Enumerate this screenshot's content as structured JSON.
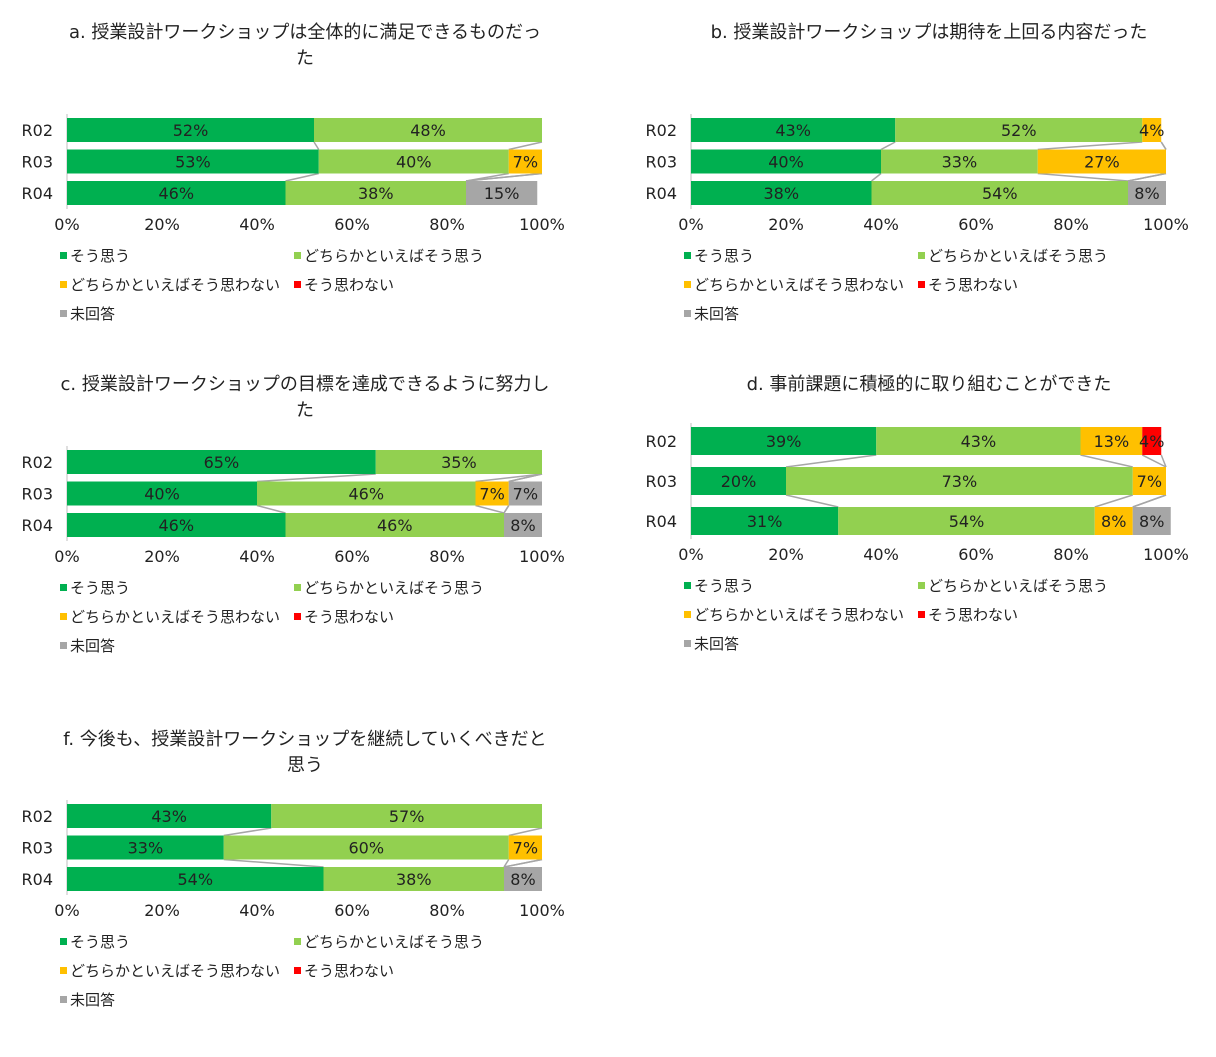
{
  "legend_labels": [
    "そう思う",
    "どちらかといえばそう思う",
    "どちらかといえばそう思わない",
    "そう思わない",
    "未回答"
  ],
  "colors": [
    "#00b050",
    "#92d050",
    "#ffc000",
    "#ff0000",
    "#a6a6a6"
  ],
  "chart_data": [
    {
      "type": "bar",
      "stacked": "percent",
      "title": "a.  授業設計ワークショップは全体的に満足できるものだった",
      "categories": [
        "R02",
        "R03",
        "R04"
      ],
      "xlim": [
        0,
        100
      ],
      "x_ticks": [
        "0%",
        "20%",
        "40%",
        "60%",
        "80%",
        "100%"
      ],
      "series": [
        {
          "name": "そう思う",
          "values": [
            52,
            53,
            46
          ]
        },
        {
          "name": "どちらかといえばそう思う",
          "values": [
            48,
            40,
            38
          ]
        },
        {
          "name": "どちらかといえばそう思わない",
          "values": [
            0,
            7,
            0
          ]
        },
        {
          "name": "そう思わない",
          "values": [
            0,
            0,
            0
          ]
        },
        {
          "name": "未回答",
          "values": [
            0,
            0,
            15
          ]
        }
      ]
    },
    {
      "type": "bar",
      "stacked": "percent",
      "title": "b.  授業設計ワークショップは期待を上回る内容だった",
      "categories": [
        "R02",
        "R03",
        "R04"
      ],
      "xlim": [
        0,
        100
      ],
      "x_ticks": [
        "0%",
        "20%",
        "40%",
        "60%",
        "80%",
        "100%"
      ],
      "series": [
        {
          "name": "そう思う",
          "values": [
            43,
            40,
            38
          ]
        },
        {
          "name": "どちらかといえばそう思う",
          "values": [
            52,
            33,
            54
          ]
        },
        {
          "name": "どちらかといえばそう思わない",
          "values": [
            4,
            27,
            0
          ]
        },
        {
          "name": "そう思わない",
          "values": [
            0,
            0,
            0
          ]
        },
        {
          "name": "未回答",
          "values": [
            0,
            0,
            8
          ]
        }
      ]
    },
    {
      "type": "bar",
      "stacked": "percent",
      "title": "c.  授業設計ワークショップの目標を達成できるように努力した",
      "categories": [
        "R02",
        "R03",
        "R04"
      ],
      "xlim": [
        0,
        100
      ],
      "x_ticks": [
        "0%",
        "20%",
        "40%",
        "60%",
        "80%",
        "100%"
      ],
      "series": [
        {
          "name": "そう思う",
          "values": [
            65,
            40,
            46
          ]
        },
        {
          "name": "どちらかといえばそう思う",
          "values": [
            35,
            46,
            46
          ]
        },
        {
          "name": "どちらかといえばそう思わない",
          "values": [
            0,
            7,
            0
          ]
        },
        {
          "name": "そう思わない",
          "values": [
            0,
            0,
            0
          ]
        },
        {
          "name": "未回答",
          "values": [
            0,
            7,
            8
          ]
        }
      ]
    },
    {
      "type": "bar",
      "stacked": "percent",
      "title": "d.  事前課題に積極的に取り組むことができた",
      "categories": [
        "R02",
        "R03",
        "R04"
      ],
      "xlim": [
        0,
        100
      ],
      "x_ticks": [
        "0%",
        "20%",
        "40%",
        "60%",
        "80%",
        "100%"
      ],
      "series": [
        {
          "name": "そう思う",
          "values": [
            39,
            20,
            31
          ]
        },
        {
          "name": "どちらかといえばそう思う",
          "values": [
            43,
            73,
            54
          ]
        },
        {
          "name": "どちらかといえばそう思わない",
          "values": [
            13,
            7,
            8
          ]
        },
        {
          "name": "そう思わない",
          "values": [
            4,
            0,
            0
          ]
        },
        {
          "name": "未回答",
          "values": [
            0,
            0,
            8
          ]
        }
      ]
    },
    {
      "type": "bar",
      "stacked": "percent",
      "title": "f.  今後も、授業設計ワークショップを継続していくべきだと思う",
      "categories": [
        "R02",
        "R03",
        "R04"
      ],
      "xlim": [
        0,
        100
      ],
      "x_ticks": [
        "0%",
        "20%",
        "40%",
        "60%",
        "80%",
        "100%"
      ],
      "series": [
        {
          "name": "そう思う",
          "values": [
            43,
            33,
            54
          ]
        },
        {
          "name": "どちらかといえばそう思う",
          "values": [
            57,
            60,
            38
          ]
        },
        {
          "name": "どちらかといえばそう思わない",
          "values": [
            0,
            7,
            0
          ]
        },
        {
          "name": "そう思わない",
          "values": [
            0,
            0,
            0
          ]
        },
        {
          "name": "未回答",
          "values": [
            0,
            0,
            8
          ]
        }
      ]
    }
  ]
}
